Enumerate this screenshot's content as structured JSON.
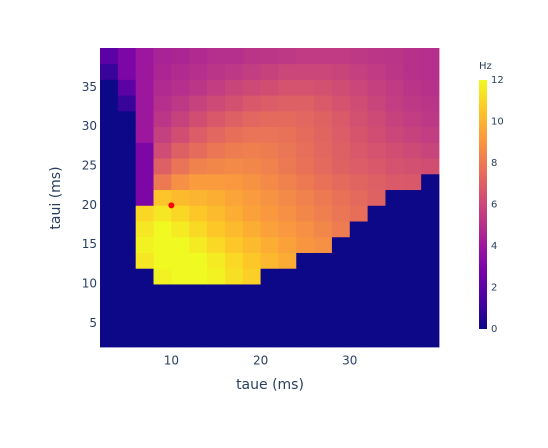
{
  "chart_data": {
    "type": "heatmap",
    "x_label": "taue (ms)",
    "y_label": "taui (ms)",
    "x": [
      3,
      5,
      7,
      9,
      11,
      13,
      15,
      17,
      19,
      21,
      23,
      25,
      27,
      29,
      31,
      33,
      35,
      37,
      39
    ],
    "y": [
      3,
      5,
      7,
      9,
      11,
      13,
      15,
      17,
      19,
      21,
      23,
      25,
      27,
      29,
      31,
      33,
      35,
      37,
      39
    ],
    "z": [
      [
        0,
        0,
        0,
        0,
        0,
        0,
        0,
        0,
        0,
        0,
        0,
        0,
        0,
        0,
        0,
        0,
        0,
        0,
        0
      ],
      [
        0,
        0,
        0,
        0,
        0,
        0,
        0,
        0,
        0,
        0,
        0,
        0,
        0,
        0,
        0,
        0,
        0,
        0,
        0
      ],
      [
        0,
        0,
        0,
        0,
        0,
        0,
        0,
        0,
        0,
        0,
        0,
        0,
        0,
        0,
        0,
        0,
        0,
        0,
        0
      ],
      [
        0,
        0,
        0,
        0,
        0,
        0,
        0,
        0,
        0,
        0,
        0,
        0,
        0,
        0,
        0,
        0,
        0,
        0,
        0
      ],
      [
        0,
        0,
        0,
        11.8,
        12,
        12,
        11.8,
        11.3,
        10.8,
        0,
        0,
        0,
        0,
        0,
        0,
        0,
        0,
        0,
        0
      ],
      [
        0,
        0,
        11.5,
        12,
        12,
        12,
        11.6,
        11.1,
        10.6,
        10.1,
        9.7,
        0,
        0,
        0,
        0,
        0,
        0,
        0,
        0
      ],
      [
        0,
        0,
        11.8,
        12,
        12,
        11.6,
        11.1,
        10.6,
        10.2,
        9.8,
        9.4,
        9,
        8.8,
        0,
        0,
        0,
        0,
        0,
        0
      ],
      [
        0,
        0,
        11.5,
        12,
        11.6,
        11.1,
        10.6,
        10.2,
        9.8,
        9.4,
        9.1,
        8.8,
        8.5,
        8.1,
        0,
        0,
        0,
        0,
        0
      ],
      [
        0,
        0,
        11,
        11.5,
        11,
        10.6,
        10.2,
        9.8,
        9.4,
        9.1,
        8.8,
        8.5,
        8.2,
        7.9,
        7.6,
        0,
        0,
        0,
        0
      ],
      [
        0,
        0,
        3,
        10.5,
        10.2,
        10,
        9.8,
        9.5,
        9.2,
        8.9,
        8.6,
        8.3,
        8,
        7.7,
        7.4,
        7.1,
        0,
        0,
        0
      ],
      [
        0,
        0,
        3,
        8,
        8.8,
        9.2,
        9.2,
        9.1,
        8.9,
        8.6,
        8.3,
        8,
        7.7,
        7.4,
        7.2,
        7,
        6.8,
        6.7,
        0
      ],
      [
        0,
        0,
        3,
        7,
        7.8,
        8.3,
        8.5,
        8.6,
        8.5,
        8.3,
        8,
        7.7,
        7.4,
        7.1,
        6.9,
        6.7,
        6.5,
        6.4,
        6.3
      ],
      [
        0,
        0,
        3,
        6.2,
        7,
        7.5,
        7.9,
        8.1,
        8.2,
        8.1,
        7.9,
        7.6,
        7.3,
        7,
        6.7,
        6.5,
        6.3,
        6.1,
        5.9
      ],
      [
        0,
        0,
        4,
        5.7,
        6.3,
        6.9,
        7.3,
        7.6,
        7.8,
        7.8,
        7.7,
        7.5,
        7.2,
        6.9,
        6.6,
        6.3,
        6,
        5.8,
        5.6
      ],
      [
        0,
        0,
        4,
        5.3,
        5.8,
        6.3,
        6.7,
        7,
        7.3,
        7.4,
        7.4,
        7.3,
        7.1,
        6.8,
        6.4,
        6.1,
        5.8,
        5.6,
        5.4
      ],
      [
        0,
        1,
        4,
        5,
        5.4,
        5.8,
        6.1,
        6.4,
        6.7,
        6.9,
        7,
        7,
        6.8,
        6.5,
        6.2,
        5.9,
        5.6,
        5.4,
        5.2
      ],
      [
        0,
        2,
        4,
        4.8,
        5,
        5.3,
        5.6,
        5.9,
        6.1,
        6.3,
        6.5,
        6.5,
        6.4,
        6.2,
        6,
        5.7,
        5.5,
        5.2,
        5.1
      ],
      [
        1,
        3,
        4,
        4.6,
        4.8,
        5,
        5.2,
        5.4,
        5.6,
        5.8,
        6,
        6,
        6,
        5.9,
        5.7,
        5.5,
        5.3,
        5.1,
        5
      ],
      [
        2,
        3,
        4,
        4.5,
        4.6,
        4.8,
        5,
        5,
        5.2,
        5.3,
        5.4,
        5.5,
        5.5,
        5.5,
        5.4,
        5.3,
        5.2,
        5.1,
        5
      ]
    ],
    "xlim": [
      2,
      40
    ],
    "ylim": [
      2,
      40
    ],
    "xticks": [
      10,
      20,
      30
    ],
    "yticks": [
      5,
      10,
      15,
      20,
      25,
      30,
      35
    ],
    "zlim": [
      0,
      12
    ],
    "colorscale": [
      "#0d0887",
      "#46039f",
      "#7201a8",
      "#9c179e",
      "#bd3786",
      "#d8576b",
      "#ed7953",
      "#fb9f3a",
      "#fdca26",
      "#f0f921"
    ],
    "colorbar_title": "Hz",
    "colorbar_ticks": [
      0,
      2,
      4,
      6,
      8,
      10,
      12
    ],
    "marker": {
      "x": 10,
      "y": 20,
      "color": "#ff0000"
    }
  }
}
